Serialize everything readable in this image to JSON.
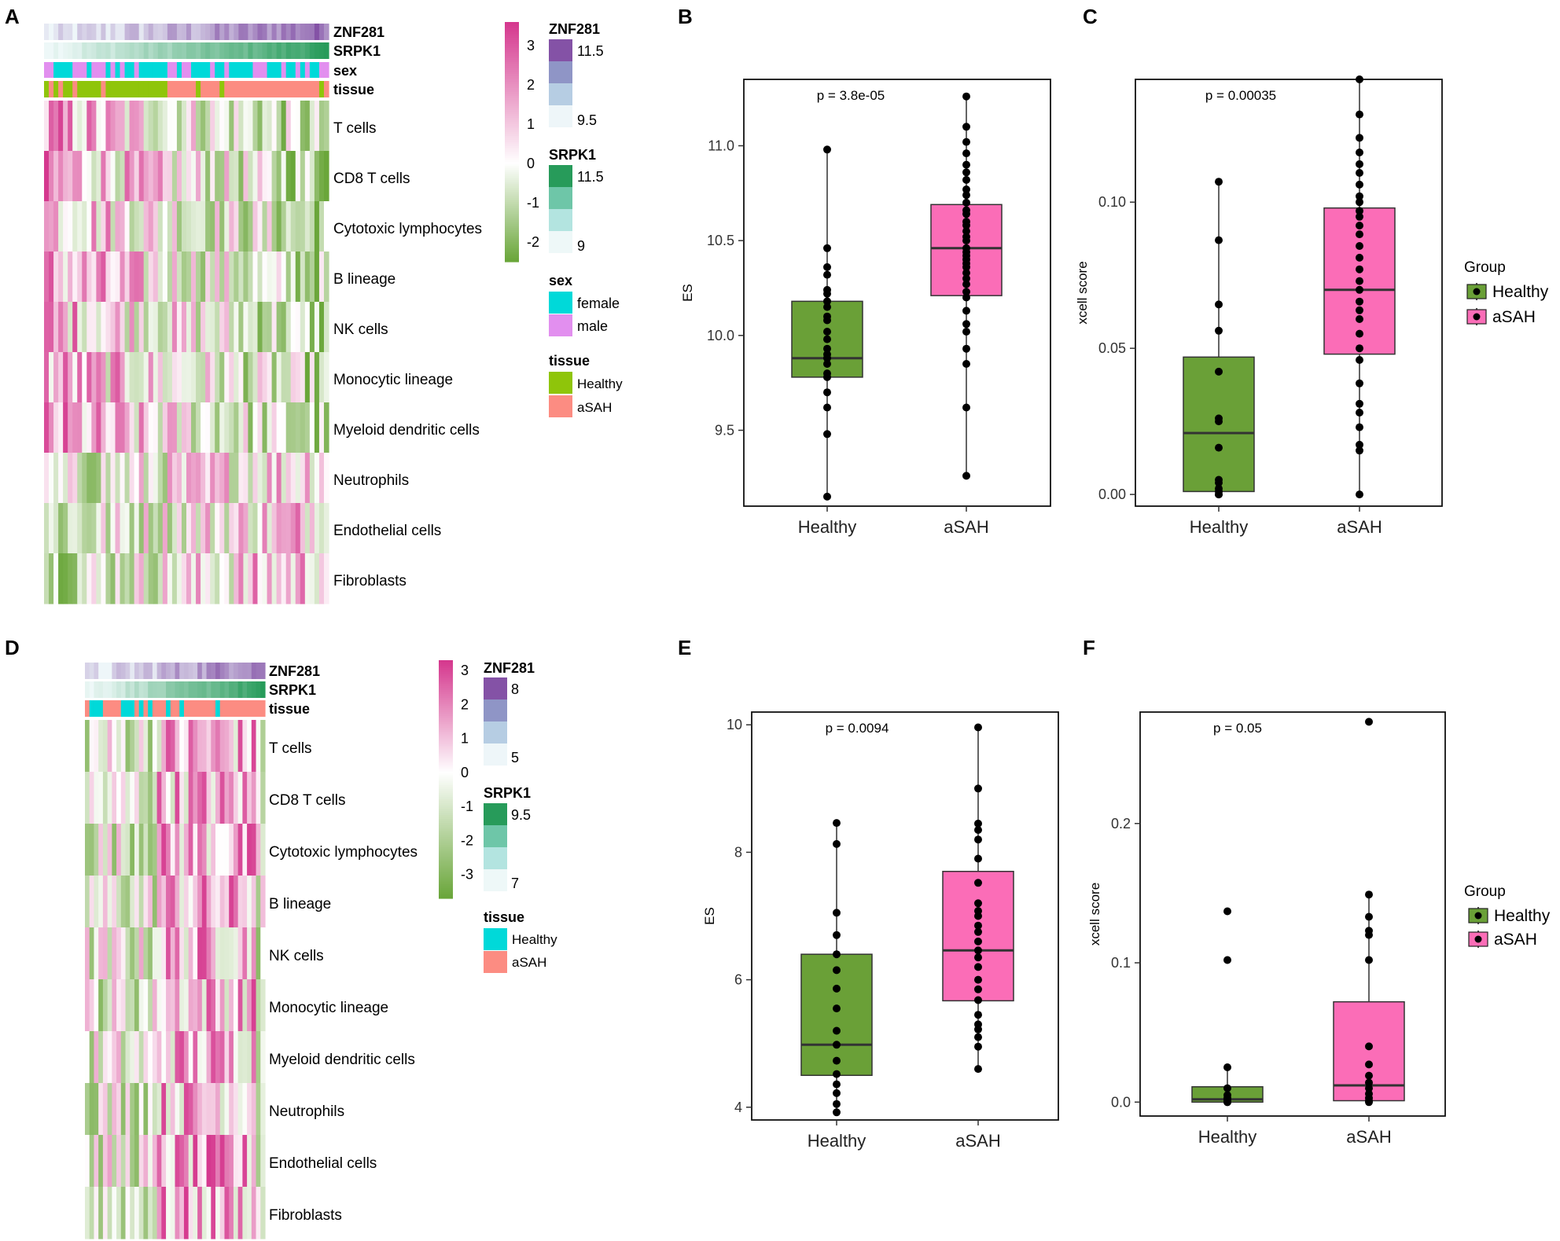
{
  "colors": {
    "healthy": "#6aa037",
    "asah": "#fb6db7",
    "sex_female": "#00d9d9",
    "sex_male": "#e28fef",
    "tissue_healthy": "#8fc50a",
    "tissue_asah": "#fc8c82",
    "heat_high": "#d5388e",
    "heat_mid": "#ffffff",
    "heat_low": "#6aa63a",
    "znf_high": "#8452a6",
    "znf_low": "#eef6f9",
    "srpk_high": "#279b5a",
    "srpk_low": "#eef8f8"
  },
  "panels": {
    "A": {
      "label": "A",
      "annotations": [
        "ZNF281",
        "SRPK1",
        "sex",
        "tissue"
      ],
      "rows": [
        "T cells",
        "CD8 T cells",
        "Cytotoxic lymphocytes",
        "B lineage",
        "NK cells",
        "Monocytic lineage",
        "Myeloid dendritic cells",
        "Neutrophils",
        "Endothelial cells",
        "Fibroblasts"
      ],
      "scale": {
        "ticks": [
          "3",
          "2",
          "1",
          "0",
          "-1",
          "-2"
        ],
        "max": 3.6,
        "min": -2.5,
        "tick_values": [
          3,
          2,
          1,
          0,
          -1,
          -2
        ]
      },
      "znf_legend": {
        "title": "ZNF281",
        "high": "11.5",
        "low": "9.5"
      },
      "srpk_legend": {
        "title": "SRPK1",
        "high": "11.5",
        "low": "9"
      },
      "sex_legend": {
        "title": "sex",
        "items": [
          "female",
          "male"
        ]
      },
      "tissue_legend": {
        "title": "tissue",
        "items": [
          "Healthy",
          "aSAH"
        ]
      },
      "n_columns": 60
    },
    "D": {
      "label": "D",
      "annotations": [
        "ZNF281",
        "SRPK1",
        "tissue"
      ],
      "rows": [
        "T cells",
        "CD8 T cells",
        "Cytotoxic lymphocytes",
        "B lineage",
        "NK cells",
        "Monocytic lineage",
        "Myeloid dendritic cells",
        "Neutrophils",
        "Endothelial cells",
        "Fibroblasts"
      ],
      "scale": {
        "ticks": [
          "3",
          "2",
          "1",
          "0",
          "-1",
          "-2",
          "-3"
        ],
        "max": 3.3,
        "min": -3.7,
        "tick_values": [
          3,
          2,
          1,
          0,
          -1,
          -2,
          -3
        ]
      },
      "znf_legend": {
        "title": "ZNF281",
        "high": "8",
        "low": "5"
      },
      "srpk_legend": {
        "title": "SRPK1",
        "high": "9.5",
        "low": "7"
      },
      "tissue_legend": {
        "title": "tissue",
        "items": [
          "Healthy",
          "aSAH"
        ]
      },
      "n_columns": 40
    }
  },
  "chart_data": [
    {
      "panel": "B",
      "type": "box",
      "ylabel": "ES",
      "ylim": [
        9.1,
        11.35
      ],
      "yticks": [
        9.5,
        10.0,
        10.5,
        11.0
      ],
      "ytick_labels": [
        "9.5",
        "10.0",
        "10.5",
        "11.0"
      ],
      "categories": [
        "Healthy",
        "aSAH"
      ],
      "pvalue": "p = 3.8e-05",
      "boxes": [
        {
          "group": "Healthy",
          "q1": 9.78,
          "median": 9.88,
          "q3": 10.18,
          "whisker_low": 9.15,
          "whisker_high": 10.98,
          "points": [
            9.15,
            9.48,
            9.62,
            9.7,
            9.78,
            9.8,
            9.85,
            9.88,
            9.9,
            9.93,
            9.98,
            10.02,
            10.08,
            10.1,
            10.15,
            10.18,
            10.22,
            10.24,
            10.32,
            10.36,
            10.46,
            10.98
          ]
        },
        {
          "group": "aSAH",
          "q1": 10.21,
          "median": 10.46,
          "q3": 10.69,
          "whisker_low": 9.26,
          "whisker_high": 11.26,
          "points": [
            9.26,
            9.62,
            9.85,
            9.93,
            10.02,
            10.06,
            10.13,
            10.2,
            10.23,
            10.27,
            10.3,
            10.33,
            10.36,
            10.38,
            10.4,
            10.42,
            10.44,
            10.46,
            10.5,
            10.52,
            10.55,
            10.58,
            10.6,
            10.64,
            10.66,
            10.7,
            10.74,
            10.77,
            10.82,
            10.86,
            10.9,
            10.96,
            11.02,
            11.1,
            11.26
          ]
        }
      ]
    },
    {
      "panel": "C",
      "type": "box",
      "ylabel": "xcell score",
      "ylim": [
        -0.004,
        0.142
      ],
      "yticks": [
        0.0,
        0.05,
        0.1
      ],
      "ytick_labels": [
        "0.00",
        "0.05",
        "0.10"
      ],
      "categories": [
        "Healthy",
        "aSAH"
      ],
      "pvalue": "p = 0.00035",
      "boxes": [
        {
          "group": "Healthy",
          "q1": 0.001,
          "median": 0.021,
          "q3": 0.047,
          "whisker_low": 0.0,
          "whisker_high": 0.107,
          "points": [
            0.0,
            0.0,
            0.001,
            0.002,
            0.004,
            0.005,
            0.016,
            0.025,
            0.026,
            0.042,
            0.056,
            0.065,
            0.087,
            0.107
          ]
        },
        {
          "group": "aSAH",
          "q1": 0.048,
          "median": 0.07,
          "q3": 0.098,
          "whisker_low": 0.0,
          "whisker_high": 0.142,
          "points": [
            0.0,
            0.015,
            0.017,
            0.023,
            0.028,
            0.031,
            0.038,
            0.046,
            0.05,
            0.055,
            0.06,
            0.063,
            0.066,
            0.07,
            0.073,
            0.077,
            0.081,
            0.085,
            0.089,
            0.092,
            0.095,
            0.097,
            0.1,
            0.102,
            0.106,
            0.11,
            0.113,
            0.117,
            0.122,
            0.13,
            0.142
          ]
        }
      ]
    },
    {
      "panel": "E",
      "type": "box",
      "ylabel": "ES",
      "ylim": [
        3.8,
        10.2
      ],
      "yticks": [
        4,
        6,
        8,
        10
      ],
      "ytick_labels": [
        "4",
        "6",
        "8",
        "10"
      ],
      "categories": [
        "Healthy",
        "aSAH"
      ],
      "pvalue": "p = 0.0094",
      "boxes": [
        {
          "group": "Healthy",
          "q1": 4.5,
          "median": 4.98,
          "q3": 6.4,
          "whisker_low": 3.92,
          "whisker_high": 8.46,
          "points": [
            3.92,
            4.05,
            4.22,
            4.36,
            4.52,
            4.73,
            4.98,
            5.2,
            5.55,
            5.86,
            6.15,
            6.4,
            6.7,
            7.05,
            8.13,
            8.46
          ]
        },
        {
          "group": "aSAH",
          "q1": 5.67,
          "median": 6.46,
          "q3": 7.7,
          "whisker_low": 4.6,
          "whisker_high": 9.96,
          "points": [
            4.6,
            4.95,
            5.1,
            5.22,
            5.3,
            5.45,
            5.68,
            5.85,
            6.0,
            6.2,
            6.35,
            6.46,
            6.6,
            6.75,
            6.85,
            7.0,
            7.08,
            7.2,
            7.52,
            7.9,
            8.2,
            8.35,
            8.45,
            9.0,
            9.96
          ]
        }
      ]
    },
    {
      "panel": "F",
      "type": "box",
      "ylabel": "xcell score",
      "ylim": [
        -0.01,
        0.28
      ],
      "yticks": [
        0.0,
        0.1,
        0.2
      ],
      "ytick_labels": [
        "0.0",
        "0.1",
        "0.2"
      ],
      "categories": [
        "Healthy",
        "aSAH"
      ],
      "pvalue": "p = 0.05",
      "boxes": [
        {
          "group": "Healthy",
          "q1": 0.0,
          "median": 0.002,
          "q3": 0.011,
          "whisker_low": 0.0,
          "whisker_high": 0.025,
          "points": [
            0.0,
            0.0,
            0.001,
            0.002,
            0.003,
            0.005,
            0.01,
            0.025,
            0.102,
            0.137
          ]
        },
        {
          "group": "aSAH",
          "q1": 0.001,
          "median": 0.012,
          "q3": 0.072,
          "whisker_low": 0.0,
          "whisker_high": 0.149,
          "points": [
            0.0,
            0.001,
            0.003,
            0.006,
            0.01,
            0.014,
            0.019,
            0.027,
            0.04,
            0.102,
            0.12,
            0.123,
            0.133,
            0.149,
            0.273
          ]
        }
      ]
    }
  ],
  "legend": {
    "title": "Group",
    "items": [
      "Healthy",
      "aSAH"
    ]
  }
}
